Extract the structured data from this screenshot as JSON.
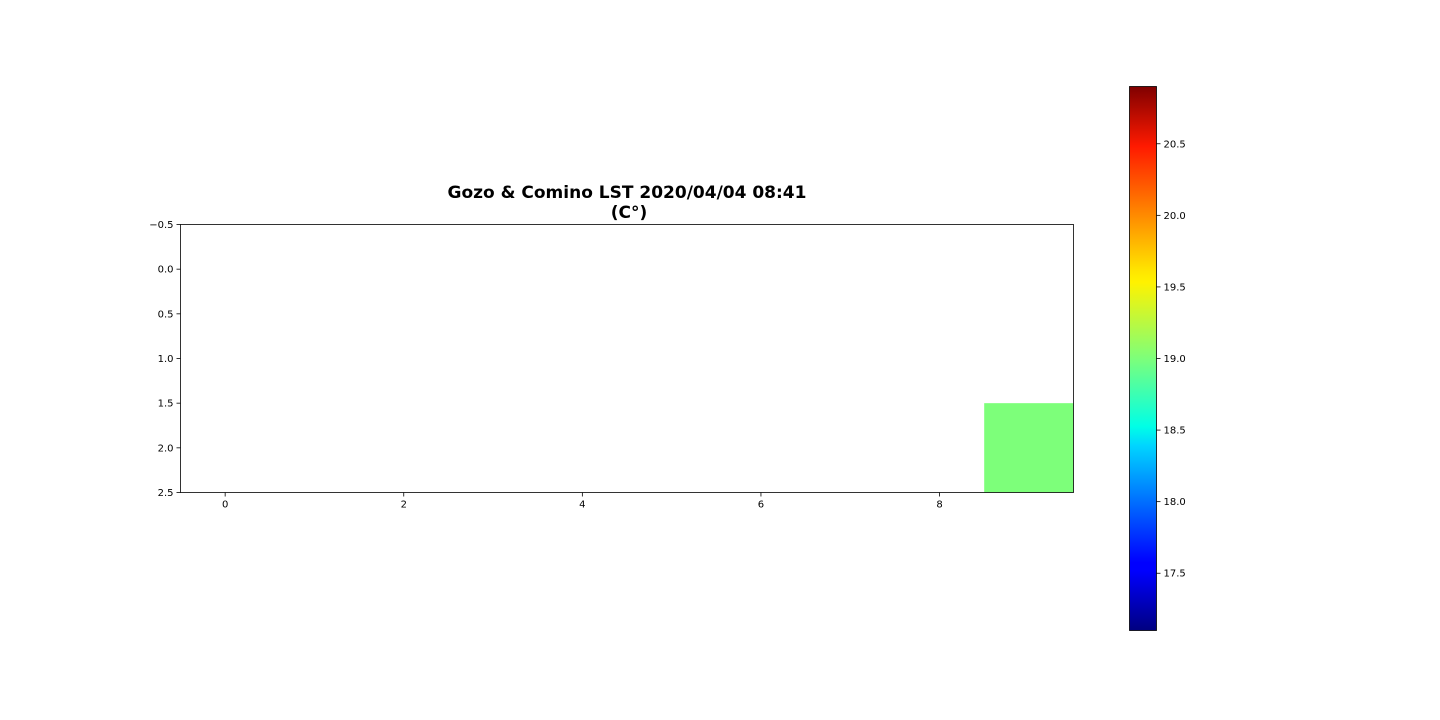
{
  "chart_data": {
    "type": "heatmap",
    "title_line1": "Gozo & Comino LST 2020/04/04 08:41",
    "title_line2": "(C°)",
    "colormap": "jet",
    "x_ticks": [
      "0",
      "2",
      "4",
      "6",
      "8"
    ],
    "y_ticks": [
      "−0.5",
      "0.0",
      "0.5",
      "1.0",
      "1.5",
      "2.0",
      "2.5"
    ],
    "xlim": [
      -0.5,
      9.5
    ],
    "ylim": [
      2.5,
      -0.5
    ],
    "grid": false,
    "cells": [
      {
        "col": 9,
        "row": 2,
        "value": 19.0,
        "color": "#7dff7a"
      }
    ],
    "colorbar": {
      "range": [
        17.1,
        20.9
      ],
      "ticks": [
        "17.5",
        "18.0",
        "18.5",
        "19.0",
        "19.5",
        "20.0",
        "20.5"
      ],
      "tick_values": [
        17.5,
        18.0,
        18.5,
        19.0,
        19.5,
        20.0,
        20.5
      ]
    }
  }
}
